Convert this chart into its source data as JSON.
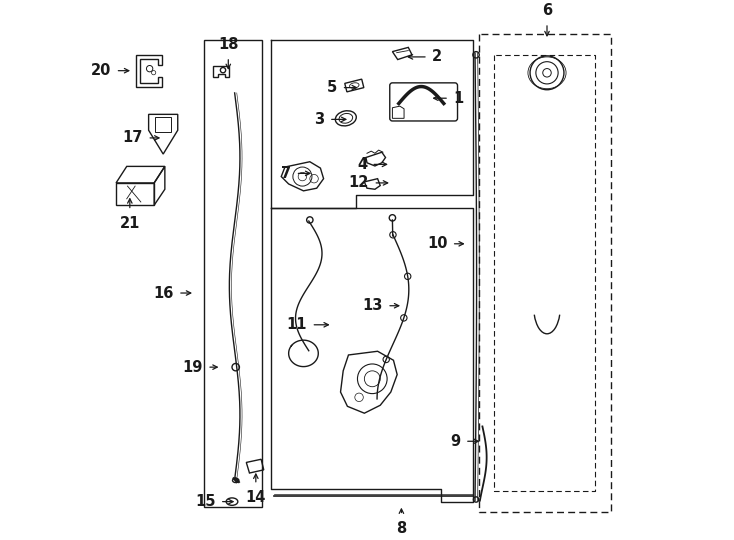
{
  "bg_color": "#ffffff",
  "line_color": "#1a1a1a",
  "figsize": [
    7.34,
    5.4
  ],
  "dpi": 100,
  "label_positions": {
    "1": [
      0.618,
      0.83,
      0.655,
      0.83
    ],
    "2": [
      0.57,
      0.908,
      0.615,
      0.908
    ],
    "3": [
      0.468,
      0.79,
      0.428,
      0.79
    ],
    "4": [
      0.545,
      0.705,
      0.508,
      0.705
    ],
    "5": [
      0.488,
      0.85,
      0.452,
      0.85
    ],
    "6": [
      0.84,
      0.94,
      0.84,
      0.972
    ],
    "7": [
      0.4,
      0.688,
      0.365,
      0.688
    ],
    "8": [
      0.565,
      0.062,
      0.565,
      0.042
    ],
    "9": [
      0.718,
      0.182,
      0.685,
      0.182
    ],
    "10": [
      0.69,
      0.555,
      0.66,
      0.555
    ],
    "11": [
      0.435,
      0.402,
      0.395,
      0.402
    ],
    "12": [
      0.547,
      0.67,
      0.512,
      0.67
    ],
    "13": [
      0.568,
      0.438,
      0.538,
      0.438
    ],
    "14": [
      0.29,
      0.128,
      0.29,
      0.1
    ],
    "15": [
      0.255,
      0.068,
      0.222,
      0.068
    ],
    "16": [
      0.175,
      0.462,
      0.143,
      0.462
    ],
    "17": [
      0.115,
      0.755,
      0.085,
      0.755
    ],
    "18": [
      0.238,
      0.878,
      0.238,
      0.908
    ],
    "19": [
      0.225,
      0.322,
      0.198,
      0.322
    ],
    "20": [
      0.058,
      0.882,
      0.025,
      0.882
    ],
    "21": [
      0.052,
      0.648,
      0.052,
      0.618
    ]
  }
}
